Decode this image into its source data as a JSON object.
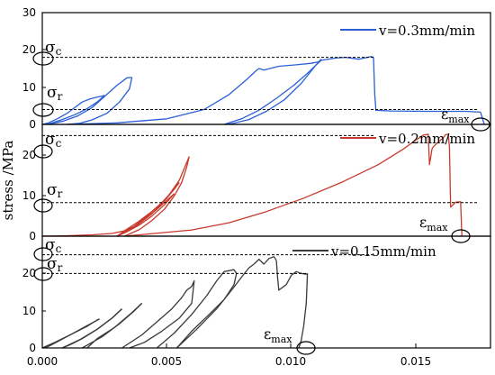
{
  "chart_data": [
    {
      "type": "line",
      "legend": "v=0.3mm/min",
      "color": "#2a5fd6",
      "ylim": [
        0,
        30
      ],
      "yticks": [
        "0",
        "10",
        "20",
        "30"
      ],
      "xlim": [
        0,
        0.018
      ],
      "annotations": {
        "sigma_c": "σc",
        "sigma_r": "σr",
        "eps_max": "εmax"
      },
      "sigma_c_level": 18,
      "sigma_r_level": 4,
      "series": [
        {
          "x": [
            0.0,
            0.0002,
            0.0006,
            0.001,
            0.0013,
            0.0016,
            0.0019,
            0.0022,
            0.0024,
            0.0025
          ],
          "y": [
            0,
            0.3,
            1.5,
            3.0,
            4.5,
            6.0,
            6.8,
            7.3,
            7.6,
            7.8
          ]
        },
        {
          "x": [
            0.0025,
            0.0022,
            0.0018,
            0.0013,
            0.0008,
            0.0004,
            0.0002
          ],
          "y": [
            7.8,
            6.0,
            4.2,
            2.6,
            1.3,
            0.4,
            0.0
          ]
        },
        {
          "x": [
            0.0002,
            0.0008,
            0.0014,
            0.002,
            0.0025,
            0.003,
            0.0034,
            0.0036
          ],
          "y": [
            0.0,
            0.8,
            2.2,
            4.5,
            7.5,
            10.5,
            12.5,
            12.6
          ]
        },
        {
          "x": [
            0.0036,
            0.0035,
            0.0031,
            0.0026,
            0.002,
            0.0015,
            0.001
          ],
          "y": [
            12.6,
            9.5,
            6.0,
            3.0,
            1.2,
            0.3,
            0.0
          ]
        },
        {
          "x": [
            0.001,
            0.003,
            0.005,
            0.0065,
            0.0075,
            0.0082,
            0.0086,
            0.0087
          ],
          "y": [
            0.0,
            0.4,
            1.5,
            4.0,
            8.0,
            12.0,
            14.5,
            15.0
          ]
        },
        {
          "x": [
            0.0087,
            0.0089,
            0.0095,
            0.0102,
            0.0108,
            0.0111,
            0.0112
          ],
          "y": [
            15.0,
            14.6,
            15.6,
            16.0,
            16.4,
            16.8,
            17.5
          ]
        },
        {
          "x": [
            0.0112,
            0.011,
            0.0104,
            0.0097,
            0.009,
            0.0083,
            0.0076,
            0.0073
          ],
          "y": [
            17.5,
            16.0,
            11.0,
            6.5,
            3.5,
            1.3,
            0.2,
            0.0
          ]
        },
        {
          "x": [
            0.0073,
            0.008,
            0.0087,
            0.0094,
            0.0101,
            0.0107,
            0.011,
            0.0112
          ],
          "y": [
            0.0,
            1.5,
            3.8,
            7.0,
            10.5,
            14.0,
            16.0,
            17.2
          ]
        },
        {
          "x": [
            0.0112,
            0.0118,
            0.0122,
            0.0127,
            0.0132,
            0.0133
          ],
          "y": [
            17.2,
            17.8,
            18.0,
            17.5,
            18.2,
            18.0
          ]
        },
        {
          "x": [
            0.0133,
            0.01335,
            0.0134,
            0.014,
            0.0155,
            0.017,
            0.0176,
            0.01775
          ],
          "y": [
            18.0,
            8.0,
            3.8,
            3.6,
            3.5,
            3.5,
            3.3,
            0.0
          ]
        }
      ]
    },
    {
      "type": "line",
      "legend": "v=0.2mm/min",
      "color": "#c8392b",
      "ylim": [
        0,
        25
      ],
      "yticks": [
        "0",
        "10",
        "20"
      ],
      "xlim": [
        0,
        0.018
      ],
      "ylabel": "stress /MPa",
      "annotations": {
        "sigma_c": "σc",
        "sigma_r": "σr",
        "eps_max": "εmax"
      },
      "sigma_c_level": 22.5,
      "sigma_r_level": 7.5,
      "series": [
        {
          "x": [
            0.0,
            0.001,
            0.002,
            0.0028,
            0.0033,
            0.0037,
            0.0041,
            0.0046,
            0.005,
            0.0053
          ],
          "y": [
            0,
            0.1,
            0.3,
            0.6,
            1.2,
            2.2,
            3.8,
            6.0,
            8.0,
            9.5
          ]
        },
        {
          "x": [
            0.0053,
            0.0049,
            0.0044,
            0.0039,
            0.0034,
            0.003
          ],
          "y": [
            9.5,
            7.0,
            4.5,
            2.5,
            1.0,
            0.0
          ]
        },
        {
          "x": [
            0.003,
            0.0036,
            0.0042,
            0.0048,
            0.0053,
            0.0055
          ],
          "y": [
            0.0,
            1.8,
            4.5,
            7.5,
            10.5,
            12.0
          ]
        },
        {
          "x": [
            0.0055,
            0.005,
            0.0044,
            0.0038,
            0.0033,
            0.003
          ],
          "y": [
            12.0,
            8.5,
            5.5,
            3.0,
            1.2,
            0.0
          ]
        },
        {
          "x": [
            0.003,
            0.0037,
            0.0044,
            0.005,
            0.0055,
            0.0058,
            0.0059
          ],
          "y": [
            0.0,
            2.0,
            5.0,
            8.5,
            12.5,
            16.5,
            17.8
          ]
        },
        {
          "x": [
            0.0059,
            0.0058,
            0.0056,
            0.0053,
            0.0049,
            0.0044,
            0.0039,
            0.0033
          ],
          "y": [
            17.8,
            15.5,
            12.0,
            9.0,
            6.0,
            3.5,
            1.5,
            0.0
          ]
        },
        {
          "x": [
            0.0033,
            0.0045,
            0.006,
            0.0075,
            0.009,
            0.0105,
            0.012,
            0.0135,
            0.0145,
            0.015
          ],
          "y": [
            0.0,
            0.6,
            1.4,
            3.0,
            5.5,
            8.5,
            12.0,
            16.0,
            19.5,
            21.5
          ]
        },
        {
          "x": [
            0.015,
            0.0153,
            0.0155,
            0.01555,
            0.01565,
            0.0157
          ],
          "y": [
            21.5,
            22.6,
            22.8,
            16.0,
            19.5,
            20.0
          ]
        },
        {
          "x": [
            0.0157,
            0.0159,
            0.0161,
            0.0162,
            0.0163,
            0.01635,
            0.0164,
            0.0166,
            0.0168,
            0.01685
          ],
          "y": [
            20.0,
            21.0,
            22.0,
            22.7,
            22.8,
            20.0,
            6.5,
            7.6,
            7.7,
            0.0
          ]
        }
      ]
    },
    {
      "type": "line",
      "legend": "v=0.15mm/min",
      "color": "#3a3a3a",
      "ylim": [
        0,
        30
      ],
      "yticks": [
        "0",
        "10",
        "20"
      ],
      "xlim": [
        0,
        0.018
      ],
      "xticks": [
        "0.000",
        "0.005",
        "0.010",
        "0.015"
      ],
      "annotations": {
        "sigma_c": "σc",
        "sigma_r": "σr",
        "eps_max": "εmax"
      },
      "sigma_c_level": 25,
      "sigma_r_level": 20,
      "series": [
        {
          "x": [
            0.0,
            0.0005,
            0.0012,
            0.0018,
            0.0022,
            0.0023
          ],
          "y": [
            0.0,
            1.5,
            3.8,
            5.8,
            7.5,
            7.8
          ]
        },
        {
          "x": [
            0.0023,
            0.0018,
            0.0012,
            0.0007,
            0.0003,
            0.0001
          ],
          "y": [
            7.8,
            6.0,
            3.8,
            2.0,
            0.6,
            0.0
          ]
        },
        {
          "x": [
            0.0008,
            0.0015,
            0.0022,
            0.0028,
            0.0032
          ],
          "y": [
            0.0,
            2.2,
            5.0,
            8.0,
            10.5
          ]
        },
        {
          "x": [
            0.0032,
            0.0028,
            0.0022,
            0.0016,
            0.0011,
            0.0008
          ],
          "y": [
            10.5,
            8.0,
            5.0,
            2.5,
            0.8,
            0.0
          ]
        },
        {
          "x": [
            0.0016,
            0.0024,
            0.0031,
            0.0037,
            0.004
          ],
          "y": [
            0.0,
            3.0,
            6.5,
            10.0,
            12.0
          ]
        },
        {
          "x": [
            0.004,
            0.0036,
            0.0029,
            0.0022,
            0.0018
          ],
          "y": [
            12.0,
            9.5,
            5.5,
            2.5,
            0.0
          ]
        },
        {
          "x": [
            0.0032,
            0.004,
            0.0046,
            0.0052,
            0.0056,
            0.0058,
            0.006
          ],
          "y": [
            0.0,
            3.5,
            7.0,
            10.5,
            13.5,
            15.5,
            16.5
          ]
        },
        {
          "x": [
            0.006,
            0.0061,
            0.006,
            0.0055,
            0.0048,
            0.0041,
            0.0035
          ],
          "y": [
            16.5,
            18.0,
            12.0,
            8.0,
            4.5,
            1.5,
            0.0
          ]
        },
        {
          "x": [
            0.0046,
            0.0053,
            0.006,
            0.0066,
            0.007,
            0.0073
          ],
          "y": [
            0.0,
            4.0,
            9.0,
            14.0,
            18.0,
            20.5
          ]
        },
        {
          "x": [
            0.0073,
            0.0077,
            0.0078,
            0.0077,
            0.0073,
            0.0067,
            0.006,
            0.0054
          ],
          "y": [
            20.5,
            21.0,
            20.0,
            17.0,
            13.0,
            9.0,
            4.5,
            0.0
          ]
        },
        {
          "x": [
            0.0054,
            0.0062,
            0.007,
            0.0076,
            0.008,
            0.0083,
            0.0085
          ],
          "y": [
            0.0,
            5.0,
            10.5,
            15.5,
            19.0,
            21.5,
            22.5
          ]
        },
        {
          "x": [
            0.0085,
            0.0087,
            0.0089,
            0.0091,
            0.0093,
            0.0094
          ],
          "y": [
            22.5,
            23.8,
            22.5,
            24.0,
            24.5,
            23.5
          ]
        },
        {
          "x": [
            0.0094,
            0.00945,
            0.0095,
            0.0098,
            0.01,
            0.0102,
            0.0104,
            0.0106,
            0.01065
          ],
          "y": [
            23.5,
            19.0,
            15.5,
            17.0,
            19.5,
            20.5,
            20.0,
            19.8,
            20.0
          ]
        },
        {
          "x": [
            0.01065,
            0.0106,
            0.0105,
            0.0104,
            0.0103
          ],
          "y": [
            20.0,
            12.0,
            6.0,
            2.0,
            0.0
          ]
        }
      ]
    }
  ]
}
